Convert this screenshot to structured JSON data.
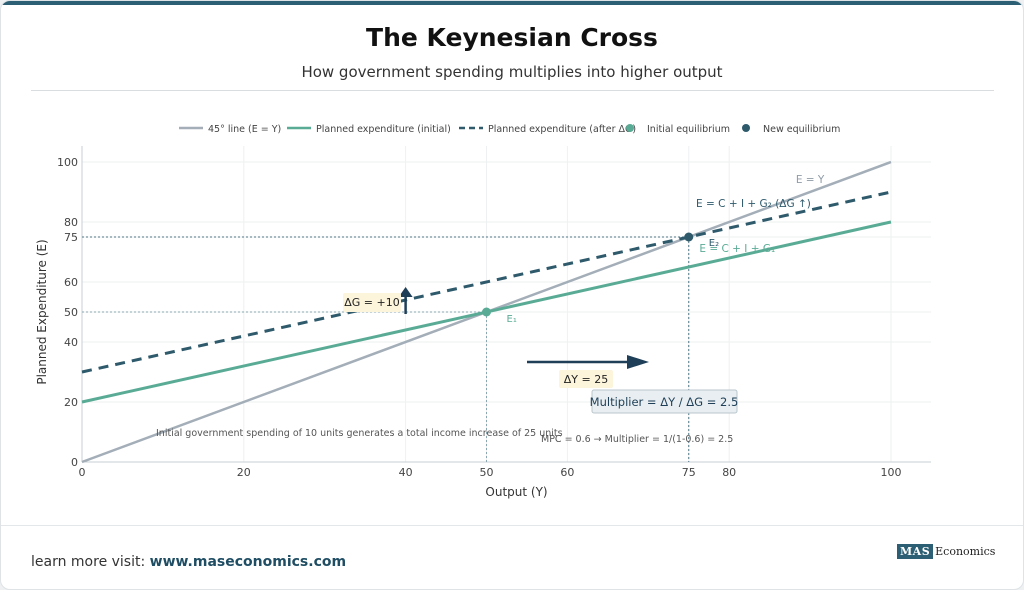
{
  "header": {
    "title": "The Keynesian Cross",
    "subtitle": "How government spending multiplies into higher output"
  },
  "footer": {
    "prefix": "learn more visit:",
    "link": "www.maseconomics.com",
    "brand_part1": "MAS",
    "brand_part2": "Economics"
  },
  "chart_data": {
    "type": "line",
    "xlabel": "Output (Y)",
    "ylabel": "Planned Expenditure (E)",
    "xlim": [
      0,
      100
    ],
    "ylim": [
      0,
      100
    ],
    "x_ticks": [
      0,
      20,
      40,
      50,
      60,
      75,
      80,
      100
    ],
    "y_ticks": [
      0,
      20,
      40,
      50,
      60,
      75,
      80,
      100
    ],
    "grid": true,
    "legend_position": "top",
    "colors": {
      "line45": "#a3aeb8",
      "initial": "#5aab95",
      "after": "#2e5a6c",
      "dots": "#8aa7b1",
      "arrow": "#1e3f57",
      "annotation_bg": "#fdf4dc"
    },
    "series": [
      {
        "name": "45° line (E = Y)",
        "style": "solid",
        "x": [
          0,
          100
        ],
        "y": [
          0,
          100
        ]
      },
      {
        "name": "Planned expenditure (initial)",
        "style": "solid",
        "x": [
          0,
          100
        ],
        "y": [
          20,
          80
        ]
      },
      {
        "name": "Planned expenditure (after ΔG)",
        "style": "dashed",
        "x": [
          0,
          100
        ],
        "y": [
          30,
          90
        ]
      }
    ],
    "points": [
      {
        "name": "Initial equilibrium",
        "x": 50,
        "y": 50,
        "label": "E₁"
      },
      {
        "name": "New equilibrium",
        "x": 75,
        "y": 75,
        "label": "E₂"
      }
    ],
    "line_labels": [
      {
        "text": "E = Y",
        "x": 90,
        "y": 93
      },
      {
        "text": "E = C + I + G₂ (ΔG ↑)",
        "x": 83,
        "y": 85
      },
      {
        "text": "E = C + I + G₁",
        "x": 81,
        "y": 70
      }
    ],
    "annotations": {
      "delta_g": "ΔG = +10",
      "delta_y": "ΔY = 25",
      "multiplier": "Multiplier = ΔY / ΔG = 2.5",
      "mpc": "MPC = 0.6 → Multiplier = 1/(1-0.6) = 2.5",
      "note": "Initial government spending of 10 units generates a total income increase of 25 units"
    }
  }
}
